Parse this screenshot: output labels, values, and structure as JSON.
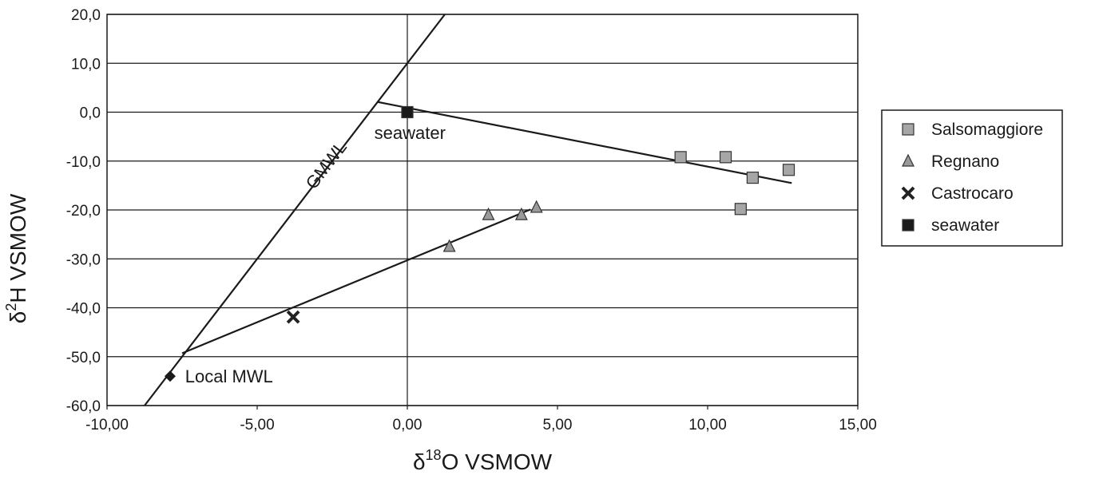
{
  "chart_data": {
    "type": "scatter",
    "title": "",
    "xlabel": {
      "prefix": "δ",
      "sup": "18",
      "rest": "O VSMOW"
    },
    "ylabel": {
      "prefix": "δ",
      "sup": "2",
      "rest": "H VSMOW"
    },
    "xlim": [
      -10,
      15
    ],
    "ylim": [
      -60,
      20
    ],
    "x_ticks": [
      {
        "value": -10,
        "label": "-10,00"
      },
      {
        "value": -5,
        "label": "-5,00"
      },
      {
        "value": 0,
        "label": "0,00"
      },
      {
        "value": 5,
        "label": "5,00"
      },
      {
        "value": 10,
        "label": "10,00"
      },
      {
        "value": 15,
        "label": "15,00"
      }
    ],
    "y_ticks": [
      {
        "value": 20,
        "label": "20,0"
      },
      {
        "value": 10,
        "label": "10,0"
      },
      {
        "value": 0,
        "label": "0,0"
      },
      {
        "value": -10,
        "label": "-10,0"
      },
      {
        "value": -20,
        "label": "-20,0"
      },
      {
        "value": -30,
        "label": "-30,0"
      },
      {
        "value": -40,
        "label": "-40,0"
      },
      {
        "value": -50,
        "label": "-50,0"
      },
      {
        "value": -60,
        "label": "-60,0"
      }
    ],
    "grid": {
      "horizontal": true,
      "vertical": false
    },
    "legend_position": "right",
    "series": [
      {
        "name": "Salsomaggiore",
        "marker": "square",
        "color": "#a6a6a6",
        "points": [
          [
            9.1,
            -9.2
          ],
          [
            10.6,
            -9.2
          ],
          [
            11.5,
            -13.4
          ],
          [
            11.1,
            -19.8
          ],
          [
            12.7,
            -11.8
          ]
        ]
      },
      {
        "name": "Regnano",
        "marker": "triangle",
        "color": "#9a9a9a",
        "points": [
          [
            1.4,
            -27.5
          ],
          [
            2.7,
            -21.0
          ],
          [
            3.8,
            -21.0
          ],
          [
            4.3,
            -19.5
          ]
        ]
      },
      {
        "name": "Castrocaro",
        "marker": "x",
        "color": "#222222",
        "points": [
          [
            -3.8,
            -41.9
          ]
        ]
      },
      {
        "name": "seawater",
        "marker": "square",
        "color": "#1a1a1a",
        "points": [
          [
            0.0,
            0.0
          ]
        ]
      }
    ],
    "extra_points": [
      {
        "marker": "diamond",
        "color": "#1a1a1a",
        "point": [
          -7.9,
          -54.0
        ]
      }
    ],
    "lines": [
      {
        "id": "gmwl",
        "from": [
          -8.75,
          -60
        ],
        "to": [
          1.25,
          20
        ]
      },
      {
        "id": "mixing-upper",
        "from": [
          -1.0,
          2.1
        ],
        "to": [
          12.8,
          -14.5
        ]
      },
      {
        "id": "mixing-lower",
        "from": [
          -7.5,
          -49.3
        ],
        "to": [
          4.1,
          -19.9
        ]
      }
    ],
    "annotations": [
      {
        "id": "gmwl-label",
        "text": "GMWL",
        "at": [
          -3.1,
          -16.0
        ],
        "rotate": true
      },
      {
        "id": "seawater-label",
        "text": "seawater",
        "at": [
          -1.1,
          -5.5
        ]
      },
      {
        "id": "local-mwl-label",
        "text": "Local MWL",
        "at": [
          -7.4,
          -55.3
        ]
      }
    ]
  }
}
